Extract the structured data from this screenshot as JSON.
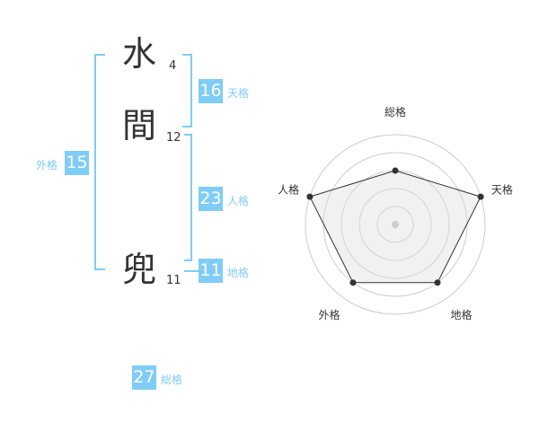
{
  "name": {
    "chars": [
      {
        "char": "水",
        "strokes": "4"
      },
      {
        "char": "間",
        "strokes": "12"
      },
      {
        "char": "兜",
        "strokes": "11"
      }
    ]
  },
  "grids": {
    "tenkaku": {
      "label": "天格",
      "value": "16"
    },
    "jinkaku": {
      "label": "人格",
      "value": "23"
    },
    "chikaku": {
      "label": "地格",
      "value": "11"
    },
    "gaikaku": {
      "label": "外格",
      "value": "15"
    },
    "soukaku": {
      "label": "総格",
      "value": "27"
    }
  },
  "colors": {
    "accent": "#7fccf7",
    "text": "#333333"
  },
  "chart_data": {
    "type": "radar",
    "axes": [
      "総格",
      "天格",
      "地格",
      "外格",
      "人格"
    ],
    "values": [
      3,
      5,
      4,
      4,
      5
    ],
    "range": [
      0,
      5
    ],
    "rings": 5
  }
}
